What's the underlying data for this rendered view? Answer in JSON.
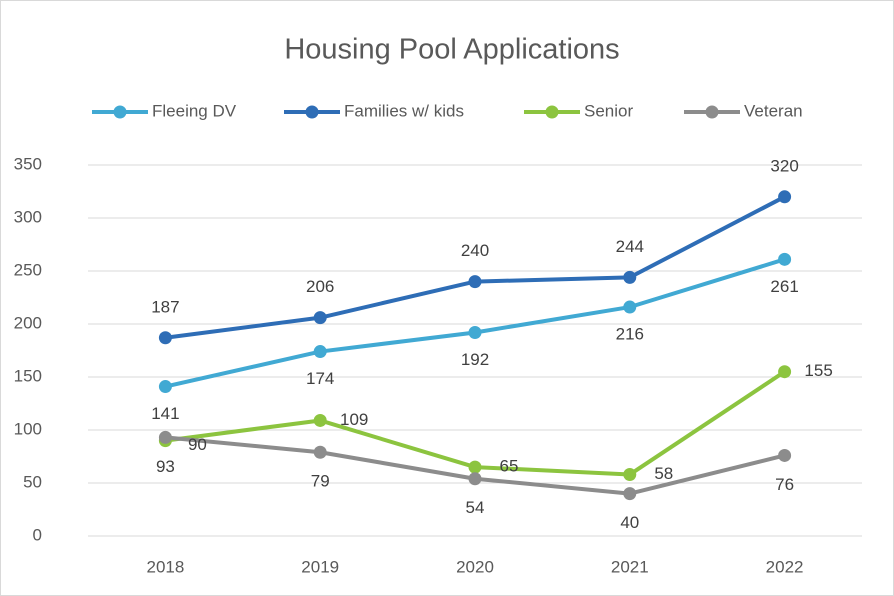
{
  "chart_data": {
    "type": "line",
    "title": "Housing Pool Applications",
    "categories": [
      "2018",
      "2019",
      "2020",
      "2021",
      "2022"
    ],
    "series": [
      {
        "name": "Fleeing DV",
        "color": "#41a9d3",
        "values": [
          141,
          174,
          192,
          216,
          261
        ]
      },
      {
        "name": "Families w/ kids",
        "color": "#2e6db6",
        "values": [
          187,
          206,
          240,
          244,
          320
        ]
      },
      {
        "name": "Senior",
        "color": "#8cc43f",
        "values": [
          90,
          109,
          65,
          58,
          155
        ]
      },
      {
        "name": "Veteran",
        "color": "#8c8c8c",
        "values": [
          93,
          79,
          54,
          40,
          76
        ]
      }
    ],
    "ylim": [
      0,
      350
    ],
    "yticks": [
      0,
      50,
      100,
      150,
      200,
      250,
      300,
      350
    ],
    "grid": true,
    "legend": "top"
  }
}
